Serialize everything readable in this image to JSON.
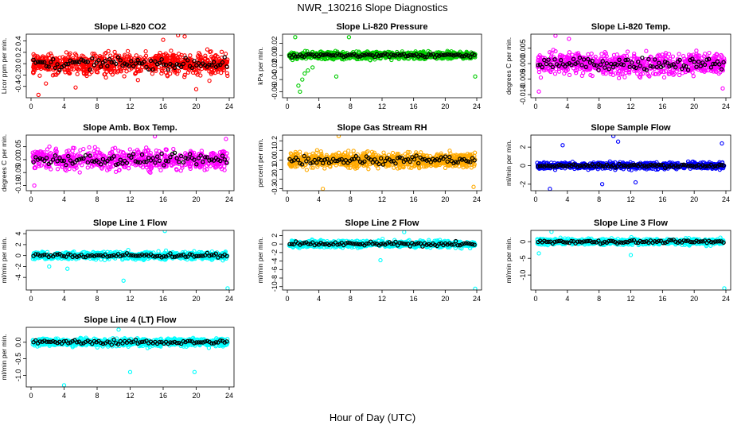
{
  "title": "NWR_130216  Slope Diagnostics",
  "xlabel": "Hour of Day (UTC)",
  "chart_data": [
    {
      "type": "scatter",
      "title": "Slope Li-820 CO2",
      "ylabel": "Licor ppm per min.",
      "xlim": [
        0,
        24
      ],
      "xticks": [
        0,
        4,
        8,
        12,
        16,
        20,
        24
      ],
      "ylim": [
        -0.6,
        0.52
      ],
      "yticks": [
        "-0.4",
        "-0.2",
        "0.0",
        "0.2",
        "0.4"
      ],
      "ytick_values": [
        -0.4,
        -0.2,
        0.0,
        0.2,
        0.4
      ],
      "color": "#ff0000",
      "spread": 0.2,
      "n": 800,
      "outliers": [
        [
          0.9,
          -0.55
        ],
        [
          1.8,
          -0.35
        ],
        [
          16,
          0.42
        ],
        [
          17.8,
          0.5
        ],
        [
          18.6,
          0.48
        ],
        [
          20,
          -0.45
        ],
        [
          21.6,
          -0.3
        ],
        [
          5.4,
          -0.42
        ]
      ]
    },
    {
      "type": "scatter",
      "title": "Slope Li-820 Pressure",
      "ylabel": "kPa per min.",
      "xlim": [
        0,
        24
      ],
      "xticks": [
        0,
        4,
        8,
        12,
        16,
        20,
        24
      ],
      "ylim": [
        -0.07,
        0.035
      ],
      "yticks": [
        "-0.06",
        "-0.04",
        "-0.02",
        "0.00",
        "0.02"
      ],
      "ytick_values": [
        -0.06,
        -0.04,
        -0.02,
        0.0,
        0.02
      ],
      "color": "#00cc00",
      "spread": 0.006,
      "n": 900,
      "outliers": [
        [
          1.0,
          0.03
        ],
        [
          1.6,
          -0.06
        ],
        [
          1.9,
          -0.04
        ],
        [
          2.2,
          -0.03
        ],
        [
          2.6,
          -0.025
        ],
        [
          3.2,
          -0.02
        ],
        [
          6.2,
          -0.035
        ],
        [
          7.8,
          0.03
        ],
        [
          23.8,
          -0.035
        ],
        [
          1.4,
          -0.05
        ]
      ]
    },
    {
      "type": "scatter",
      "title": "Slope Li-820 Temp.",
      "ylabel": "degrees C per min.",
      "xlim": [
        0,
        24
      ],
      "xticks": [
        0,
        4,
        8,
        12,
        16,
        20,
        24
      ],
      "ylim": [
        -0.011,
        0.0095
      ],
      "yticks": [
        "-0.010",
        "-0.005",
        "0.000",
        "0.005"
      ],
      "ytick_values": [
        -0.01,
        -0.005,
        0.0,
        0.005
      ],
      "color": "#ff00ff",
      "spread": 0.0035,
      "n": 800,
      "outliers": [
        [
          2.5,
          0.009
        ],
        [
          0.4,
          -0.009
        ],
        [
          4.2,
          0.008
        ],
        [
          23.6,
          -0.008
        ]
      ]
    },
    {
      "type": "scatter",
      "title": "Slope Amb. Box Temp.",
      "ylabel": "degrees C per min.",
      "xlim": [
        0,
        24
      ],
      "xticks": [
        0,
        4,
        8,
        12,
        16,
        20,
        24
      ],
      "ylim": [
        -0.12,
        0.095
      ],
      "yticks": [
        "-0.10",
        "-0.05",
        "0.00",
        "0.05"
      ],
      "ytick_values": [
        -0.1,
        -0.05,
        0.0,
        0.05
      ],
      "color": "#ff00ff",
      "spread": 0.04,
      "n": 700,
      "outliers": [
        [
          0.4,
          -0.1
        ],
        [
          15,
          0.09
        ],
        [
          23.6,
          0.08
        ]
      ]
    },
    {
      "type": "scatter",
      "title": "Slope Gas Stream RH",
      "ylabel": "percent per min.",
      "xlim": [
        0,
        24
      ],
      "xticks": [
        0,
        4,
        8,
        12,
        16,
        20,
        24
      ],
      "ylim": [
        -0.32,
        0.26
      ],
      "yticks": [
        "-0.3",
        "-0.2",
        "-0.1",
        "0.0",
        "0.1",
        "0.2"
      ],
      "ytick_values": [
        -0.3,
        -0.2,
        -0.1,
        0.0,
        0.1,
        0.2
      ],
      "color": "#ffaa00",
      "spread": 0.08,
      "n": 900,
      "outliers": [
        [
          4.5,
          -0.3
        ],
        [
          6.5,
          0.25
        ],
        [
          23.6,
          -0.28
        ]
      ]
    },
    {
      "type": "scatter",
      "title": "Slope Sample Flow",
      "ylabel": "ml/min per min.",
      "xlim": [
        0,
        24
      ],
      "xticks": [
        0,
        4,
        8,
        12,
        16,
        20,
        24
      ],
      "ylim": [
        -2.7,
        3.3
      ],
      "yticks": [
        "-2",
        "0",
        "2"
      ],
      "ytick_values": [
        -2,
        0,
        2
      ],
      "color": "#0000ff",
      "spread": 0.35,
      "n": 800,
      "outliers": [
        [
          1.8,
          -2.5
        ],
        [
          3.4,
          2.2
        ],
        [
          9.8,
          3.2
        ],
        [
          10.4,
          2.6
        ],
        [
          23.5,
          2.4
        ],
        [
          12.6,
          -1.8
        ],
        [
          8.4,
          -2.0
        ]
      ]
    },
    {
      "type": "scatter",
      "title": "Slope Line 1 Flow",
      "ylabel": "ml/min per min.",
      "xlim": [
        0,
        24
      ],
      "xticks": [
        0,
        4,
        8,
        12,
        16,
        20,
        24
      ],
      "ylim": [
        -6.3,
        4.6
      ],
      "yticks": [
        "-4",
        "-2",
        "0",
        "2",
        "4"
      ],
      "ytick_values": [
        -4,
        -2,
        0,
        2,
        4
      ],
      "color": "#00ffff",
      "spread": 0.7,
      "n": 800,
      "outliers": [
        [
          11.2,
          -4.6
        ],
        [
          16.2,
          4.5
        ],
        [
          23.8,
          -6.0
        ],
        [
          4.4,
          -2.4
        ],
        [
          2.2,
          -2.0
        ]
      ]
    },
    {
      "type": "scatter",
      "title": "Slope Line 2 Flow",
      "ylabel": "ml/min per min.",
      "xlim": [
        0,
        24
      ],
      "xticks": [
        0,
        4,
        8,
        12,
        16,
        20,
        24
      ],
      "ylim": [
        -10.8,
        3.2
      ],
      "yticks": [
        "-10",
        "-8",
        "-6",
        "-4",
        "-2",
        "0",
        "2"
      ],
      "ytick_values": [
        -10,
        -8,
        -6,
        -4,
        -2,
        0,
        2
      ],
      "color": "#00ffff",
      "spread": 0.8,
      "n": 800,
      "outliers": [
        [
          11.8,
          -3.8
        ],
        [
          23.8,
          -10.5
        ],
        [
          14.8,
          2.8
        ]
      ]
    },
    {
      "type": "scatter",
      "title": "Slope Line 3 Flow",
      "ylabel": "ml/min per min.",
      "xlim": [
        0,
        24
      ],
      "xticks": [
        0,
        4,
        8,
        12,
        16,
        20,
        24
      ],
      "ylim": [
        -14.5,
        3.4
      ],
      "yticks": [
        "-10",
        "-5",
        "0"
      ],
      "ytick_values": [
        -10,
        -5,
        0
      ],
      "color": "#00ffff",
      "spread": 0.9,
      "n": 800,
      "outliers": [
        [
          12.0,
          -4.0
        ],
        [
          23.8,
          -14.0
        ],
        [
          2.0,
          3.0
        ],
        [
          0.4,
          -3.5
        ]
      ]
    },
    {
      "type": "scatter",
      "title": "Slope Line 4 (LT) Flow",
      "ylabel": "ml/min per min.",
      "xlim": [
        0,
        24
      ],
      "xticks": [
        0,
        4,
        8,
        12,
        16,
        20,
        24
      ],
      "ylim": [
        -1.35,
        0.45
      ],
      "yticks": [
        "-1.0",
        "-0.5",
        "0.0"
      ],
      "ytick_values": [
        -1.0,
        -0.5,
        0.0
      ],
      "color": "#00ffff",
      "spread": 0.12,
      "n": 800,
      "outliers": [
        [
          4.0,
          -1.3
        ],
        [
          12.0,
          -0.9
        ],
        [
          19.8,
          -0.9
        ],
        [
          10.6,
          0.38
        ]
      ]
    }
  ]
}
